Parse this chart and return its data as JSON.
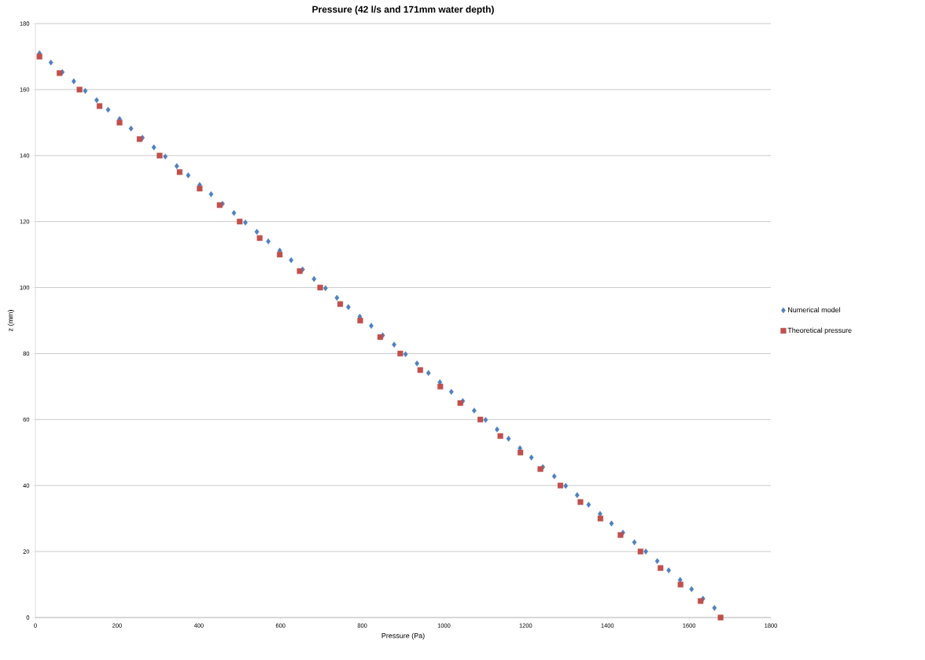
{
  "chart_data": {
    "type": "scatter",
    "title": "Pressure (42 l/s and 171mm  water depth)",
    "xlabel": "Pressure (Pa)",
    "ylabel": "z (mm)",
    "xlim": [
      0,
      1800
    ],
    "xticks": [
      0,
      200,
      400,
      600,
      800,
      1000,
      1200,
      1400,
      1600,
      1800
    ],
    "ylim": [
      0,
      180
    ],
    "yticks": [
      0,
      20,
      40,
      60,
      80,
      100,
      120,
      140,
      160,
      180
    ],
    "grid": "y",
    "legend": "right",
    "series": [
      {
        "name": "Numerical model",
        "color": "#4f81bd",
        "marker": "diamond",
        "x": [
          10,
          38,
          66,
          94,
          122,
          150,
          178,
          206,
          234,
          262,
          290,
          318,
          346,
          374,
          402,
          430,
          458,
          486,
          514,
          542,
          570,
          598,
          626,
          654,
          682,
          710,
          738,
          766,
          794,
          822,
          850,
          878,
          906,
          934,
          962,
          990,
          1018,
          1046,
          1074,
          1102,
          1130,
          1158,
          1186,
          1214,
          1242,
          1270,
          1298,
          1326,
          1354,
          1382,
          1410,
          1438,
          1466,
          1494,
          1522,
          1550,
          1578,
          1606,
          1634,
          1662
        ],
        "values": [
          171,
          168.2,
          165.3,
          162.5,
          159.6,
          156.8,
          153.9,
          151.1,
          148.2,
          145.4,
          142.5,
          139.7,
          136.8,
          134.0,
          131.1,
          128.3,
          125.4,
          122.6,
          119.7,
          116.9,
          114.0,
          111.2,
          108.3,
          105.5,
          102.6,
          99.8,
          96.9,
          94.1,
          91.2,
          88.4,
          85.5,
          82.7,
          79.8,
          77.0,
          74.1,
          71.3,
          68.4,
          65.6,
          62.7,
          59.9,
          57.0,
          54.2,
          51.3,
          48.5,
          45.6,
          42.8,
          39.9,
          37.1,
          34.2,
          31.4,
          28.5,
          25.7,
          22.8,
          20.0,
          17.1,
          14.3,
          11.4,
          8.6,
          5.7,
          2.9
        ]
      },
      {
        "name": "Theoretical pressure",
        "color": "#c0504d",
        "marker": "square",
        "x": [
          10,
          59,
          108,
          157,
          206,
          255,
          304,
          353,
          402,
          451,
          500,
          549,
          598,
          647,
          697,
          746,
          795,
          844,
          893,
          942,
          991,
          1040,
          1089,
          1138,
          1187,
          1236,
          1285,
          1334,
          1383,
          1432,
          1481,
          1530,
          1579,
          1628,
          1677
        ],
        "values": [
          170,
          165,
          160,
          155,
          150,
          145,
          140,
          135,
          130,
          125,
          120,
          115,
          110,
          105,
          100,
          95,
          90,
          85,
          80,
          75,
          70,
          65,
          60,
          55,
          50,
          45,
          40,
          35,
          30,
          25,
          20,
          15,
          10,
          5,
          0
        ]
      }
    ]
  }
}
